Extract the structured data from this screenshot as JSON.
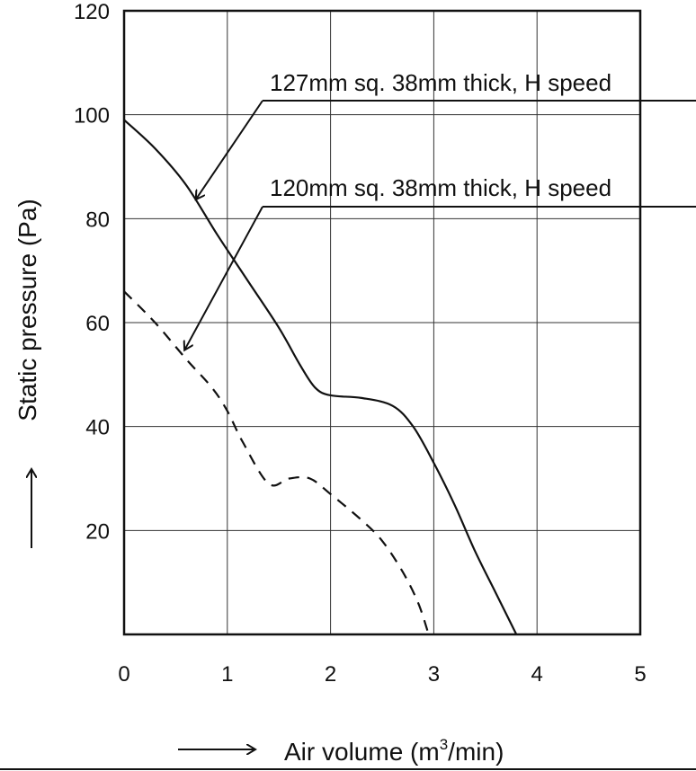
{
  "chart_data": {
    "type": "line",
    "xlabel": "Air volume (m",
    "xlabel_sup": "3",
    "xlabel_tail": "/min)",
    "ylabel": "Static pressure (Pa)",
    "xlim": [
      0,
      5
    ],
    "ylim": [
      0,
      120
    ],
    "x_ticks": [
      "0",
      "1",
      "2",
      "3",
      "4",
      "5"
    ],
    "y_ticks": [
      "20",
      "40",
      "60",
      "80",
      "100",
      "120"
    ],
    "grid": true,
    "series": [
      {
        "name": "127mm sq. 38mm thick, H speed",
        "style": "solid",
        "points": [
          [
            0,
            99
          ],
          [
            0.3,
            93.5
          ],
          [
            0.6,
            86.5
          ],
          [
            0.9,
            77
          ],
          [
            1.2,
            68
          ],
          [
            1.5,
            59
          ],
          [
            1.7,
            52
          ],
          [
            1.85,
            47.5
          ],
          [
            2.0,
            46
          ],
          [
            2.3,
            45.5
          ],
          [
            2.6,
            44
          ],
          [
            2.8,
            40
          ],
          [
            3.0,
            33
          ],
          [
            3.2,
            25
          ],
          [
            3.4,
            16
          ],
          [
            3.6,
            8
          ],
          [
            3.8,
            0
          ]
        ]
      },
      {
        "name": "120mm sq. 38mm thick, H speed",
        "style": "dashed",
        "points": [
          [
            0,
            66
          ],
          [
            0.3,
            60
          ],
          [
            0.6,
            53
          ],
          [
            0.85,
            47.5
          ],
          [
            1.0,
            43
          ],
          [
            1.15,
            37
          ],
          [
            1.4,
            29
          ],
          [
            1.6,
            30
          ],
          [
            1.8,
            30
          ],
          [
            2.0,
            27
          ],
          [
            2.3,
            22
          ],
          [
            2.5,
            18
          ],
          [
            2.7,
            12
          ],
          [
            2.85,
            6
          ],
          [
            2.95,
            0
          ]
        ]
      }
    ],
    "annotations": [
      {
        "text": "127mm sq. 38mm thick, H speed",
        "target": [
          0.66,
          83
        ]
      },
      {
        "text": "120mm sq. 38mm thick, H speed",
        "target": [
          0.55,
          54
        ]
      }
    ]
  }
}
